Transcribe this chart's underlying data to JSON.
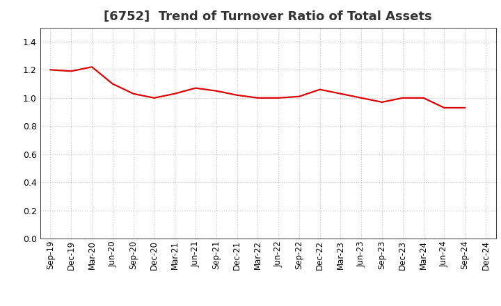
{
  "title": "[6752]  Trend of Turnover Ratio of Total Assets",
  "x_labels": [
    "Sep-19",
    "Dec-19",
    "Mar-20",
    "Jun-20",
    "Sep-20",
    "Dec-20",
    "Mar-21",
    "Jun-21",
    "Sep-21",
    "Dec-21",
    "Mar-22",
    "Jun-22",
    "Sep-22",
    "Dec-22",
    "Mar-23",
    "Jun-23",
    "Sep-23",
    "Dec-23",
    "Mar-24",
    "Jun-24",
    "Sep-24",
    "Dec-24"
  ],
  "y_values": [
    1.2,
    1.19,
    1.22,
    1.1,
    1.03,
    1.0,
    1.03,
    1.07,
    1.05,
    1.02,
    1.0,
    1.0,
    1.01,
    1.06,
    1.03,
    1.0,
    0.97,
    1.0,
    1.0,
    0.93,
    0.93,
    null
  ],
  "line_color": "#dd0000",
  "line_width": 1.6,
  "ylim": [
    0.0,
    1.5
  ],
  "yticks": [
    0.0,
    0.2,
    0.4,
    0.6,
    0.8,
    1.0,
    1.2,
    1.4
  ],
  "grid_color": "#bbbbbb",
  "background_color": "#ffffff",
  "title_fontsize": 13,
  "tick_fontsize": 8.5
}
